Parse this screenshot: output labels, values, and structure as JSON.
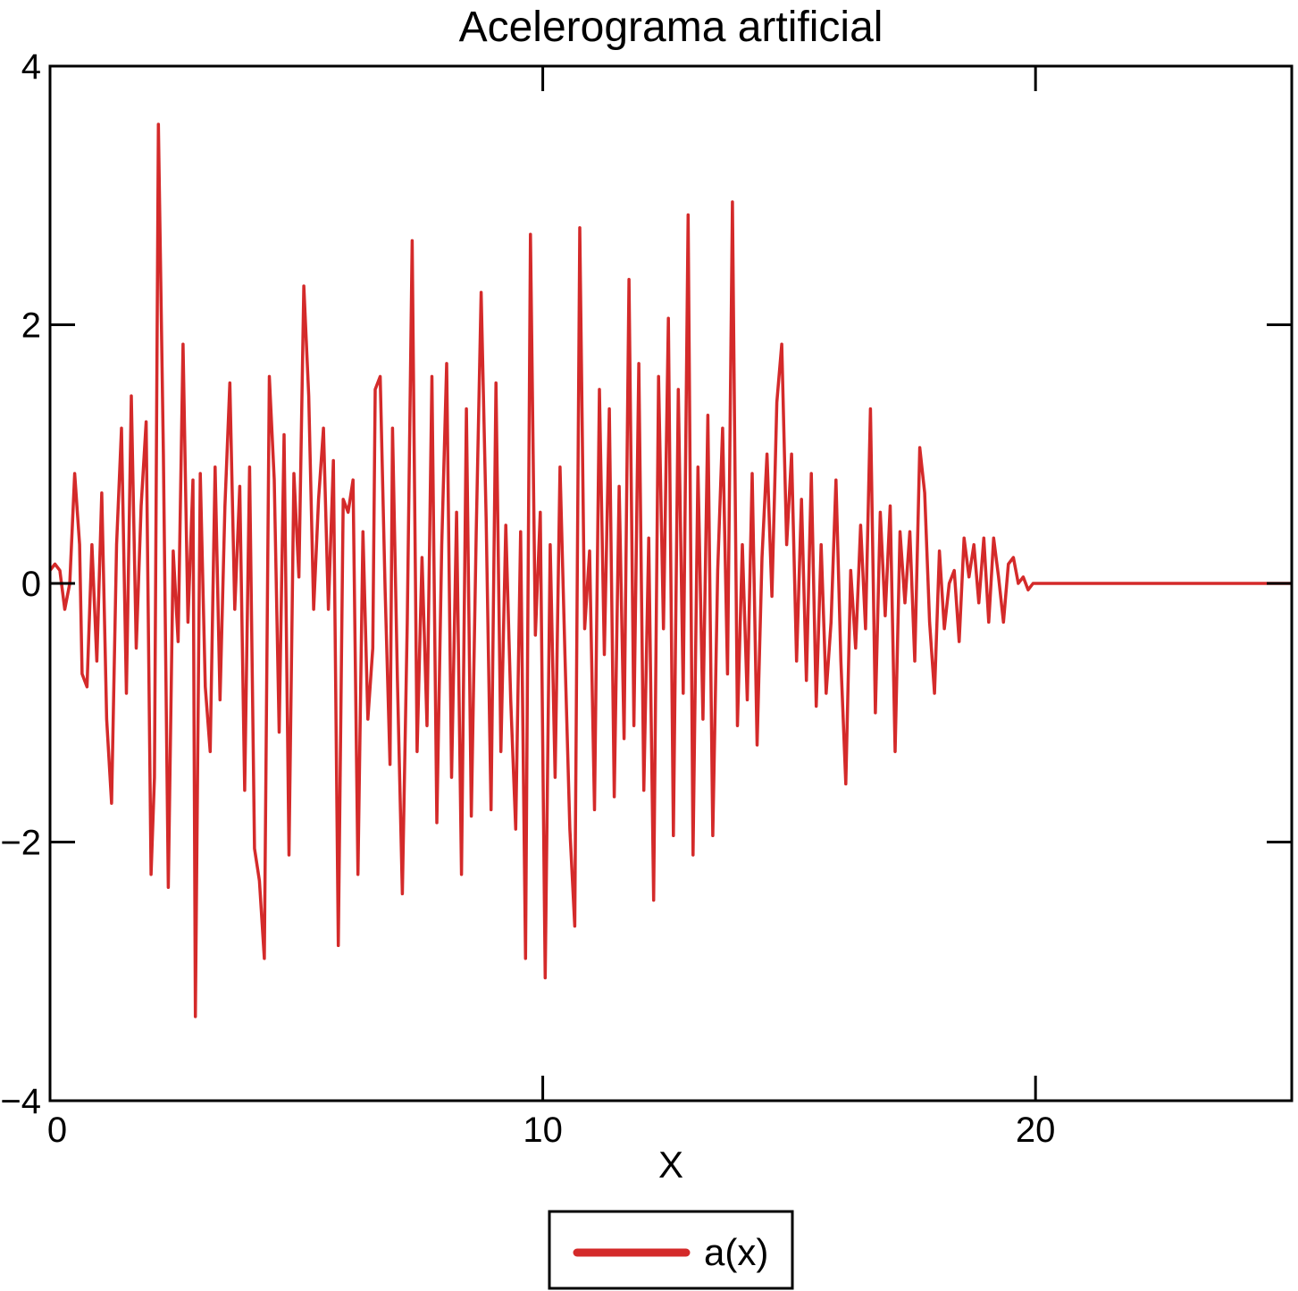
{
  "chart_data": {
    "type": "line",
    "title": "Acelerograma artificial",
    "xlabel": "X",
    "ylabel": "",
    "xlim": [
      0,
      25.2
    ],
    "ylim": [
      -4,
      4
    ],
    "x_ticks": [
      0,
      10,
      20
    ],
    "x_tick_labels": [
      "0",
      "10",
      "20"
    ],
    "y_ticks": [
      4,
      2,
      0,
      -2,
      -4
    ],
    "y_tick_labels": [
      "4",
      "2",
      "0",
      "−2",
      "−4"
    ],
    "grid": false,
    "legend_position": "bottom-center",
    "series": [
      {
        "name": "a(x)",
        "color": "#d42a2a",
        "points": [
          [
            0,
            0.1
          ],
          [
            0.1,
            0.15
          ],
          [
            0.2,
            0.1
          ],
          [
            0.3,
            -0.2
          ],
          [
            0.4,
            0.0
          ],
          [
            0.5,
            0.85
          ],
          [
            0.6,
            0.3
          ],
          [
            0.65,
            -0.7
          ],
          [
            0.75,
            -0.8
          ],
          [
            0.85,
            0.3
          ],
          [
            0.95,
            -0.6
          ],
          [
            1.05,
            0.7
          ],
          [
            1.15,
            -1.05
          ],
          [
            1.25,
            -1.7
          ],
          [
            1.35,
            0.3
          ],
          [
            1.45,
            1.2
          ],
          [
            1.55,
            -0.85
          ],
          [
            1.65,
            1.45
          ],
          [
            1.75,
            -0.5
          ],
          [
            1.85,
            0.6
          ],
          [
            1.95,
            1.25
          ],
          [
            2.05,
            -2.25
          ],
          [
            2.12,
            -1.5
          ],
          [
            2.2,
            3.55
          ],
          [
            2.3,
            1.0
          ],
          [
            2.4,
            -2.35
          ],
          [
            2.5,
            0.25
          ],
          [
            2.6,
            -0.45
          ],
          [
            2.7,
            1.85
          ],
          [
            2.8,
            -0.3
          ],
          [
            2.9,
            0.8
          ],
          [
            2.95,
            -3.35
          ],
          [
            3.05,
            0.85
          ],
          [
            3.15,
            -0.8
          ],
          [
            3.25,
            -1.3
          ],
          [
            3.35,
            0.9
          ],
          [
            3.45,
            -0.9
          ],
          [
            3.55,
            0.6
          ],
          [
            3.65,
            1.55
          ],
          [
            3.75,
            -0.2
          ],
          [
            3.85,
            0.75
          ],
          [
            3.95,
            -1.6
          ],
          [
            4.05,
            0.9
          ],
          [
            4.15,
            -2.05
          ],
          [
            4.25,
            -2.3
          ],
          [
            4.35,
            -2.9
          ],
          [
            4.45,
            1.6
          ],
          [
            4.55,
            0.8
          ],
          [
            4.65,
            -1.15
          ],
          [
            4.75,
            1.15
          ],
          [
            4.85,
            -2.1
          ],
          [
            4.95,
            0.85
          ],
          [
            5.05,
            0.05
          ],
          [
            5.15,
            2.3
          ],
          [
            5.25,
            1.45
          ],
          [
            5.35,
            -0.2
          ],
          [
            5.45,
            0.65
          ],
          [
            5.55,
            1.2
          ],
          [
            5.65,
            -0.2
          ],
          [
            5.75,
            0.95
          ],
          [
            5.85,
            -2.8
          ],
          [
            5.95,
            0.65
          ],
          [
            6.05,
            0.55
          ],
          [
            6.15,
            0.8
          ],
          [
            6.25,
            -2.25
          ],
          [
            6.35,
            0.4
          ],
          [
            6.45,
            -1.05
          ],
          [
            6.55,
            -0.5
          ],
          [
            6.6,
            1.5
          ],
          [
            6.7,
            1.6
          ],
          [
            6.8,
            -0.05
          ],
          [
            6.9,
            -1.4
          ],
          [
            6.95,
            1.2
          ],
          [
            7.05,
            -0.75
          ],
          [
            7.15,
            -2.4
          ],
          [
            7.25,
            -0.3
          ],
          [
            7.35,
            2.65
          ],
          [
            7.45,
            -1.3
          ],
          [
            7.55,
            0.2
          ],
          [
            7.65,
            -1.1
          ],
          [
            7.75,
            1.6
          ],
          [
            7.85,
            -1.85
          ],
          [
            7.95,
            0.3
          ],
          [
            8.05,
            1.7
          ],
          [
            8.15,
            -1.5
          ],
          [
            8.25,
            0.55
          ],
          [
            8.35,
            -2.25
          ],
          [
            8.45,
            1.35
          ],
          [
            8.55,
            -1.8
          ],
          [
            8.65,
            0.4
          ],
          [
            8.75,
            2.25
          ],
          [
            8.85,
            0.5
          ],
          [
            8.95,
            -1.75
          ],
          [
            9.05,
            1.55
          ],
          [
            9.15,
            -1.3
          ],
          [
            9.25,
            0.45
          ],
          [
            9.35,
            -0.9
          ],
          [
            9.45,
            -1.9
          ],
          [
            9.55,
            0.4
          ],
          [
            9.65,
            -2.9
          ],
          [
            9.75,
            2.7
          ],
          [
            9.85,
            -0.4
          ],
          [
            9.95,
            0.55
          ],
          [
            10.05,
            -3.05
          ],
          [
            10.15,
            0.3
          ],
          [
            10.25,
            -1.5
          ],
          [
            10.35,
            0.9
          ],
          [
            10.45,
            -0.55
          ],
          [
            10.55,
            -1.9
          ],
          [
            10.65,
            -2.65
          ],
          [
            10.75,
            2.75
          ],
          [
            10.85,
            -0.35
          ],
          [
            10.95,
            0.25
          ],
          [
            11.05,
            -1.75
          ],
          [
            11.15,
            1.5
          ],
          [
            11.25,
            -0.55
          ],
          [
            11.35,
            1.35
          ],
          [
            11.45,
            -1.65
          ],
          [
            11.55,
            0.75
          ],
          [
            11.65,
            -1.2
          ],
          [
            11.75,
            2.35
          ],
          [
            11.85,
            -1.1
          ],
          [
            11.95,
            1.7
          ],
          [
            12.05,
            -1.6
          ],
          [
            12.15,
            0.35
          ],
          [
            12.25,
            -2.45
          ],
          [
            12.35,
            1.6
          ],
          [
            12.45,
            -0.35
          ],
          [
            12.55,
            2.05
          ],
          [
            12.65,
            -1.95
          ],
          [
            12.75,
            1.5
          ],
          [
            12.85,
            -0.85
          ],
          [
            12.95,
            2.85
          ],
          [
            13.05,
            -2.1
          ],
          [
            13.15,
            0.9
          ],
          [
            13.25,
            -1.05
          ],
          [
            13.35,
            1.3
          ],
          [
            13.45,
            -1.95
          ],
          [
            13.55,
            0.1
          ],
          [
            13.65,
            1.2
          ],
          [
            13.75,
            -0.7
          ],
          [
            13.85,
            2.95
          ],
          [
            13.95,
            -1.1
          ],
          [
            14.05,
            0.3
          ],
          [
            14.15,
            -0.9
          ],
          [
            14.25,
            0.85
          ],
          [
            14.35,
            -1.25
          ],
          [
            14.45,
            0.2
          ],
          [
            14.55,
            1.0
          ],
          [
            14.65,
            -0.1
          ],
          [
            14.75,
            1.4
          ],
          [
            14.85,
            1.85
          ],
          [
            14.95,
            0.3
          ],
          [
            15.05,
            1.0
          ],
          [
            15.15,
            -0.6
          ],
          [
            15.25,
            0.65
          ],
          [
            15.35,
            -0.75
          ],
          [
            15.45,
            0.85
          ],
          [
            15.55,
            -0.95
          ],
          [
            15.65,
            0.3
          ],
          [
            15.75,
            -0.85
          ],
          [
            15.85,
            -0.3
          ],
          [
            15.95,
            0.8
          ],
          [
            16.05,
            -0.6
          ],
          [
            16.15,
            -1.55
          ],
          [
            16.25,
            0.1
          ],
          [
            16.35,
            -0.5
          ],
          [
            16.45,
            0.45
          ],
          [
            16.55,
            -0.35
          ],
          [
            16.65,
            1.35
          ],
          [
            16.75,
            -1.0
          ],
          [
            16.85,
            0.55
          ],
          [
            16.95,
            -0.25
          ],
          [
            17.05,
            0.6
          ],
          [
            17.15,
            -1.3
          ],
          [
            17.25,
            0.4
          ],
          [
            17.35,
            -0.15
          ],
          [
            17.45,
            0.4
          ],
          [
            17.55,
            -0.6
          ],
          [
            17.65,
            1.05
          ],
          [
            17.75,
            0.7
          ],
          [
            17.85,
            -0.3
          ],
          [
            17.95,
            -0.85
          ],
          [
            18.05,
            0.25
          ],
          [
            18.15,
            -0.35
          ],
          [
            18.25,
            0.0
          ],
          [
            18.35,
            0.1
          ],
          [
            18.45,
            -0.45
          ],
          [
            18.55,
            0.35
          ],
          [
            18.65,
            0.05
          ],
          [
            18.75,
            0.3
          ],
          [
            18.85,
            -0.15
          ],
          [
            18.95,
            0.35
          ],
          [
            19.05,
            -0.3
          ],
          [
            19.15,
            0.35
          ],
          [
            19.25,
            0.05
          ],
          [
            19.35,
            -0.3
          ],
          [
            19.45,
            0.15
          ],
          [
            19.55,
            0.2
          ],
          [
            19.65,
            0.0
          ],
          [
            19.75,
            0.05
          ],
          [
            19.85,
            -0.05
          ],
          [
            19.95,
            0.0
          ],
          [
            20.05,
            0.0
          ],
          [
            25.2,
            0.0
          ]
        ]
      }
    ]
  }
}
